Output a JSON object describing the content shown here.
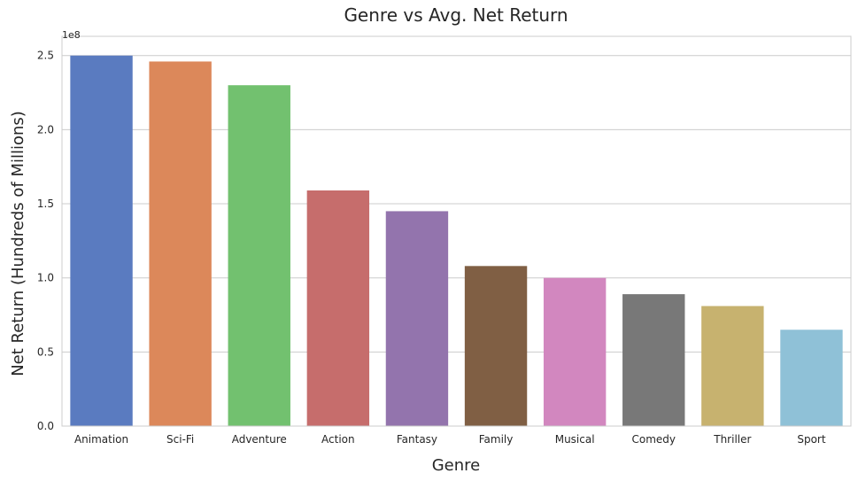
{
  "chart_data": {
    "type": "bar",
    "title": "Genre vs Avg. Net Return",
    "xlabel": "Genre",
    "ylabel": "Net Return (Hundreds of Millions)",
    "y_offset_label": "1e8",
    "categories": [
      "Animation",
      "Sci-Fi",
      "Adventure",
      "Action",
      "Fantasy",
      "Family",
      "Musical",
      "Comedy",
      "Thriller",
      "Sport"
    ],
    "values": [
      250000000,
      246000000,
      230000000,
      159000000,
      145000000,
      108000000,
      100000000,
      89000000,
      81000000,
      65000000
    ],
    "colors": [
      "#5a7bc0",
      "#dc885a",
      "#72c16f",
      "#c66d6c",
      "#9374ad",
      "#805f44",
      "#d287bf",
      "#787878",
      "#c7b26f",
      "#8fc1d7"
    ],
    "yticks": [
      0,
      50000000,
      100000000,
      150000000,
      200000000,
      250000000
    ],
    "ytick_labels": [
      "0.0",
      "0.5",
      "1.0",
      "1.5",
      "2.0",
      "2.5"
    ],
    "ylim": [
      0,
      263000000
    ],
    "grid": true,
    "grid_axis": "y"
  }
}
